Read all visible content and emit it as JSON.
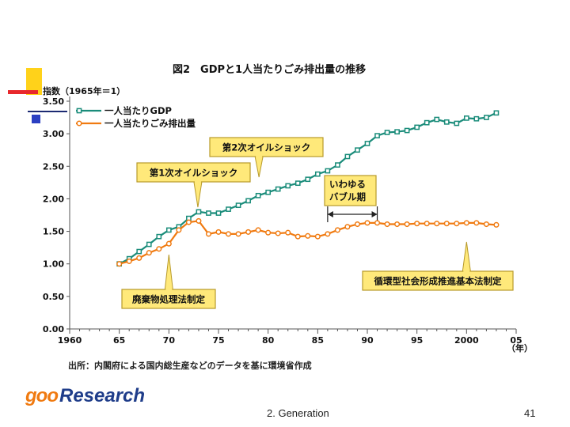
{
  "slide": {
    "footer_center": "2. Generation",
    "page_number": "41",
    "logo_left": "goo",
    "logo_right": "Research"
  },
  "colors": {
    "gdp": "#1a8c7a",
    "waste": "#f07a10",
    "callout_fill": "#ffe97a",
    "callout_stroke": "#b89a2a"
  },
  "chart_data": {
    "type": "line",
    "title": "図2　GDPと1人当たりごみ排出量の推移",
    "ylabel": "指数（1965年＝1）",
    "xlabel": "（年）",
    "source": "出所：内閣府による国内総生産などのデータを基に環境省作成",
    "xlim": [
      1960,
      2005
    ],
    "ylim": [
      0,
      3.5
    ],
    "x_ticks": [
      1960,
      1965,
      1970,
      1975,
      1980,
      1985,
      1990,
      1995,
      2000,
      2005
    ],
    "x_tick_labels": [
      "1960",
      "65",
      "70",
      "75",
      "80",
      "85",
      "90",
      "95",
      "2000",
      "05"
    ],
    "y_ticks": [
      0,
      0.5,
      1.0,
      1.5,
      2.0,
      2.5,
      3.0,
      3.5
    ],
    "y_tick_labels": [
      "0.00",
      "0.50",
      "1.00",
      "1.50",
      "2.00",
      "2.50",
      "3.00",
      "3.50"
    ],
    "grid": false,
    "legend_position": "top-left",
    "series": [
      {
        "name": "一人当たりGDP",
        "x": [
          1965,
          1966,
          1967,
          1968,
          1969,
          1970,
          1971,
          1972,
          1973,
          1974,
          1975,
          1976,
          1977,
          1978,
          1979,
          1980,
          1981,
          1982,
          1983,
          1984,
          1985,
          1986,
          1987,
          1988,
          1989,
          1990,
          1991,
          1992,
          1993,
          1994,
          1995,
          1996,
          1997,
          1998,
          1999,
          2000,
          2001,
          2002,
          2003
        ],
        "values": [
          1.0,
          1.08,
          1.19,
          1.3,
          1.42,
          1.52,
          1.57,
          1.7,
          1.8,
          1.78,
          1.78,
          1.84,
          1.9,
          1.97,
          2.05,
          2.1,
          2.15,
          2.2,
          2.24,
          2.3,
          2.38,
          2.43,
          2.52,
          2.65,
          2.75,
          2.85,
          2.97,
          3.02,
          3.03,
          3.05,
          3.1,
          3.17,
          3.22,
          3.18,
          3.16,
          3.24,
          3.23,
          3.25,
          3.32
        ]
      },
      {
        "name": "一人当たりごみ排出量",
        "x": [
          1965,
          1966,
          1967,
          1968,
          1969,
          1970,
          1971,
          1972,
          1973,
          1974,
          1975,
          1976,
          1977,
          1978,
          1979,
          1980,
          1981,
          1982,
          1983,
          1984,
          1985,
          1986,
          1987,
          1988,
          1989,
          1990,
          1991,
          1992,
          1993,
          1994,
          1995,
          1996,
          1997,
          1998,
          1999,
          2000,
          2001,
          2002,
          2003
        ],
        "values": [
          1.0,
          1.04,
          1.09,
          1.17,
          1.23,
          1.31,
          1.52,
          1.64,
          1.66,
          1.46,
          1.49,
          1.46,
          1.46,
          1.49,
          1.52,
          1.48,
          1.47,
          1.48,
          1.42,
          1.43,
          1.42,
          1.46,
          1.52,
          1.57,
          1.61,
          1.63,
          1.63,
          1.61,
          1.61,
          1.61,
          1.62,
          1.62,
          1.62,
          1.62,
          1.62,
          1.63,
          1.63,
          1.61,
          1.6
        ]
      }
    ],
    "annotations": [
      {
        "label_lines": [
          "第2次オイルショック"
        ],
        "year": 1979
      },
      {
        "label_lines": [
          "第1次オイルショック"
        ],
        "year": 1973
      },
      {
        "label_lines": [
          "いわゆる",
          "バブル期"
        ],
        "range": [
          1986,
          1991
        ]
      },
      {
        "label_lines": [
          "廃棄物処理法制定"
        ],
        "year": 1970
      },
      {
        "label_lines": [
          "循環型社会形成推進基本法制定"
        ],
        "year": 2000
      }
    ]
  }
}
